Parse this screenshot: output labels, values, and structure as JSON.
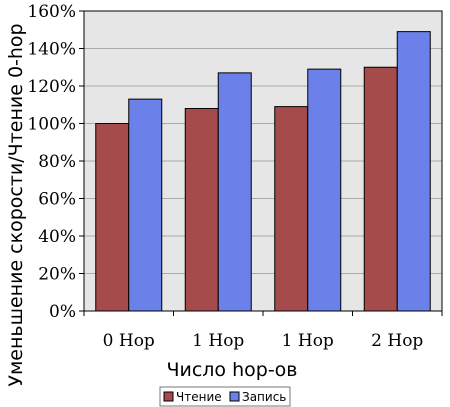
{
  "chart_data": {
    "type": "bar",
    "categories": [
      "0 Hop",
      "1 Hop",
      "1 Hop",
      "2 Hop"
    ],
    "series": [
      {
        "name": "Чтение",
        "values": [
          100,
          108,
          109,
          130
        ],
        "color": "#a54b4b"
      },
      {
        "name": "Запись",
        "values": [
          113,
          127,
          129,
          149
        ],
        "color": "#6b80e8"
      }
    ],
    "xlabel": "Число hop-ов",
    "ylabel": "Уменьшение скорости/Чтение 0-hop",
    "ylim": [
      0,
      160
    ],
    "y_ticks": [
      0,
      20,
      40,
      60,
      80,
      100,
      120,
      140,
      160
    ],
    "y_tick_labels": [
      "0%",
      "20%",
      "40%",
      "60%",
      "80%",
      "100%",
      "120%",
      "140%",
      "160%"
    ],
    "grid": "horizontal",
    "plot_background": "#e6e6e6",
    "legend_position": "bottom"
  }
}
